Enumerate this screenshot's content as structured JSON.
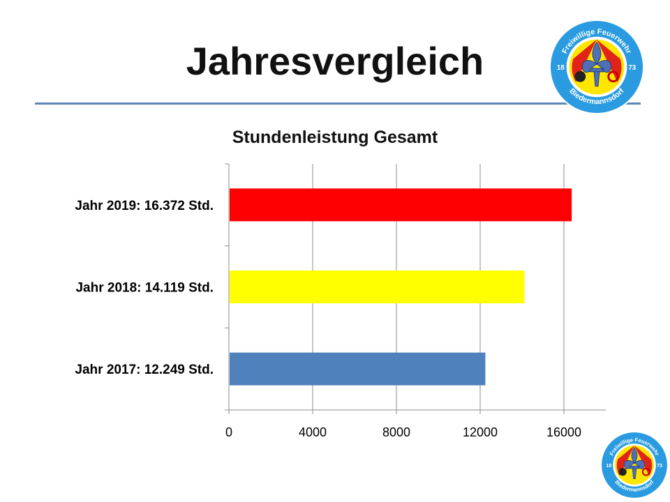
{
  "slide": {
    "title": "Jahresvergleich"
  },
  "logo": {
    "top_text": "Freiwillige Feuerwehr",
    "bottom_text": "Biedermannsdorf",
    "year_left": "18",
    "year_right": "73"
  },
  "colors": {
    "rule": "#5b86b8",
    "logo_ring": "#2a9be0",
    "logo_red": "#e2231a",
    "logo_yellow": "#ffe600",
    "lily": "#4f6fb8"
  },
  "chart_data": {
    "type": "bar",
    "orientation": "horizontal",
    "title": "Stundenleistung Gesamt",
    "categories": [
      "Jahr 2019: 16.372 Std.",
      "Jahr 2018: 14.119 Std.",
      "Jahr 2017: 12.249 Std."
    ],
    "values": [
      16372,
      14119,
      12249
    ],
    "colors": [
      "#ff0000",
      "#ffff00",
      "#4f81bd"
    ],
    "xlim": [
      0,
      18000
    ],
    "xticks": [
      0,
      4000,
      8000,
      12000,
      16000
    ],
    "grid": true,
    "legend": "none"
  }
}
